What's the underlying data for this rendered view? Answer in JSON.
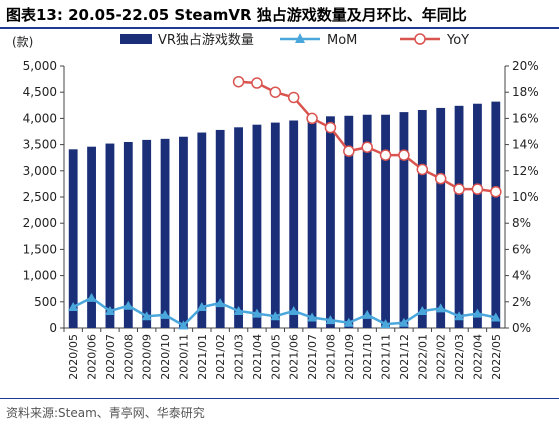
{
  "title": "图表13:  20.05-22.05 SteamVR 独占游戏数量及月环比、年同比",
  "source": "资料来源:Steam、青亭网、华泰研究",
  "colors": {
    "bar": "#1b2f78",
    "mom": "#4aa7dc",
    "yoy": "#d9534f",
    "frame": "#1f3a93"
  },
  "chart_data": {
    "type": "bar",
    "unit_label": "(款)",
    "categories": [
      "2020/05",
      "2020/06",
      "2020/07",
      "2020/08",
      "2020/09",
      "2020/10",
      "2020/11",
      "2021/01",
      "2021/02",
      "2021/03",
      "2021/04",
      "2021/05",
      "2021/06",
      "2021/07",
      "2021/08",
      "2021/09",
      "2021/10",
      "2021/11",
      "2021/12",
      "2022/01",
      "2022/02",
      "2022/03",
      "2022/04",
      "2022/05"
    ],
    "ylim_left": [
      0,
      5000
    ],
    "yticks_left": [
      "0",
      "500",
      "1,000",
      "1,500",
      "2,000",
      "2,500",
      "3,000",
      "3,500",
      "4,000",
      "4,500",
      "5,000"
    ],
    "ylim_right": [
      0,
      20
    ],
    "yticks_right": [
      "0%",
      "2%",
      "4%",
      "6%",
      "8%",
      "10%",
      "12%",
      "14%",
      "16%",
      "18%",
      "20%"
    ],
    "legend_position": "top",
    "series": [
      {
        "name": "VR独占游戏数量",
        "type": "bar",
        "axis": "left",
        "values": [
          3410,
          3460,
          3520,
          3550,
          3590,
          3610,
          3650,
          3730,
          3780,
          3830,
          3880,
          3920,
          3960,
          4000,
          4040,
          4050,
          4070,
          4070,
          4120,
          4160,
          4200,
          4240,
          4280,
          4320
        ]
      },
      {
        "name": "MoM",
        "type": "line",
        "axis": "right",
        "values": [
          1.6,
          2.3,
          1.3,
          1.7,
          0.9,
          1.0,
          0.2,
          1.6,
          1.9,
          1.3,
          1.1,
          0.9,
          1.3,
          0.8,
          0.6,
          0.4,
          1.0,
          0.3,
          0.4,
          1.3,
          1.5,
          0.9,
          1.1,
          0.8
        ]
      },
      {
        "name": "YoY",
        "type": "line",
        "axis": "right",
        "values": [
          null,
          null,
          null,
          null,
          null,
          null,
          null,
          null,
          null,
          18.8,
          18.7,
          18.0,
          17.6,
          16.0,
          15.3,
          13.5,
          13.8,
          13.2,
          13.2,
          12.1,
          11.4,
          10.6,
          10.6,
          10.4
        ]
      }
    ]
  }
}
